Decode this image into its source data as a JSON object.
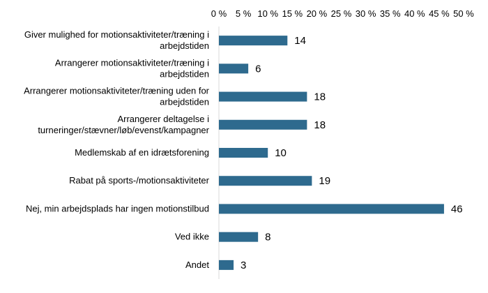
{
  "chart_data": {
    "type": "bar",
    "orientation": "horizontal",
    "title": "",
    "xlabel": "",
    "ylabel": "",
    "xlim": [
      0,
      50
    ],
    "tick_step": 5,
    "tick_unit": " %",
    "x_axis_position": "top",
    "grid": false,
    "legend": "none",
    "bar_color": "#2E6A8E",
    "categories": [
      [
        "Giver mulighed for motionsaktiviteter/træning i",
        "arbejdstiden"
      ],
      [
        "Arrangerer motionsaktiviteter/træning i",
        "arbejdstiden"
      ],
      [
        "Arrangerer motionsaktiviteter/træning uden for",
        "arbejdstiden"
      ],
      [
        "Arrangerer deltagelse i",
        "turneringer/stævner/løb/evenst/kampagner"
      ],
      [
        "Medlemskab af en idrætsforening"
      ],
      [
        "Rabat på sports-/motionsaktiviteter"
      ],
      [
        "Nej, min arbejdsplads har ingen motionstilbud"
      ],
      [
        "Ved ikke"
      ],
      [
        "Andet"
      ]
    ],
    "values": [
      14,
      6,
      18,
      18,
      10,
      19,
      46,
      8,
      3
    ]
  }
}
